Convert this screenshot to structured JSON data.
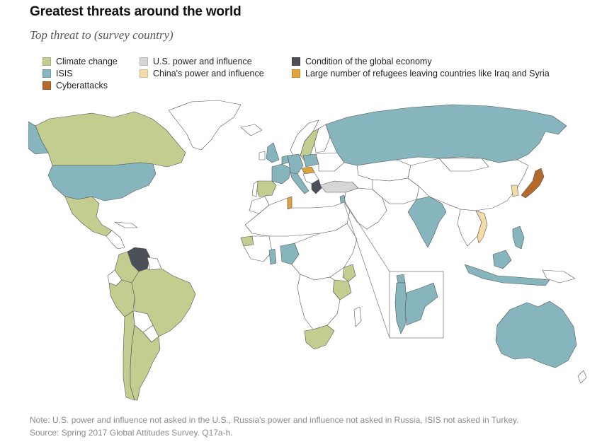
{
  "header": {
    "title": "Greatest threats around the world",
    "subtitle": "Top threat to (survey country)"
  },
  "colors": {
    "climate": "#c3cd8f",
    "isis": "#86b5be",
    "cyber": "#b5692a",
    "us": "#d6d6d6",
    "china": "#f3dca7",
    "economy": "#4b4f57",
    "refugees": "#e0a23b",
    "none": "#ffffff",
    "border": "#555555"
  },
  "legend": {
    "items": [
      {
        "label": "Climate change",
        "key": "climate"
      },
      {
        "label": "ISIS",
        "key": "isis"
      },
      {
        "label": "Cyberattacks",
        "key": "cyber"
      },
      {
        "label": "U.S. power and influence",
        "key": "us"
      },
      {
        "label": "China's power and influence",
        "key": "china"
      },
      {
        "label": "Condition of the global economy",
        "key": "economy"
      },
      {
        "label": "Large number of refugees leaving countries like Iraq and Syria",
        "key": "refugees"
      }
    ]
  },
  "map_data": {
    "categories": {
      "Canada": "climate",
      "United States": "isis",
      "Mexico": "climate",
      "Venezuela": "economy",
      "Colombia": "climate",
      "Peru": "climate",
      "Brazil": "climate",
      "Chile": "climate",
      "Argentina": "climate",
      "United Kingdom": "isis",
      "Spain": "climate",
      "France": "isis",
      "Netherlands": "isis",
      "Germany": "isis",
      "Sweden": "climate",
      "Poland": "isis",
      "Italy": "isis",
      "Hungary": "refugees",
      "Greece": "economy",
      "Turkey": "us",
      "Russia": "isis",
      "Tunisia": "refugees",
      "Israel": "isis",
      "Jordan": "isis",
      "Lebanon": "isis",
      "Senegal": "climate",
      "Ghana": "isis",
      "Nigeria": "isis",
      "Kenya": "climate",
      "Tanzania": "climate",
      "South Africa": "climate",
      "India": "isis",
      "China": "none",
      "South Korea": "china",
      "Japan": "cyber",
      "Vietnam": "china",
      "Philippines": "isis",
      "Indonesia": "isis",
      "Australia": "isis"
    }
  },
  "notes": {
    "line1": "Note: U.S. power and influence not asked in the U.S., Russia's power and influence not asked in Russia, ISIS not asked in Turkey.",
    "line2": "Source: Spring 2017 Global Attitudes Survey. Q17a-h."
  }
}
